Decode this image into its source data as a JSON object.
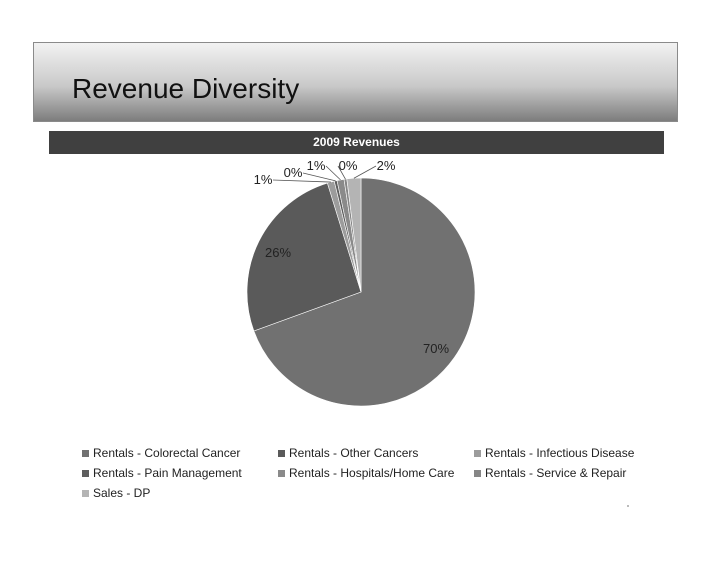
{
  "slide": {
    "title": "Revenue Diversity"
  },
  "chart_data": {
    "type": "pie",
    "title": "2009 Revenues",
    "categories": [
      "Rentals - Colorectal Cancer",
      "Rentals - Other Cancers",
      "Rentals - Infectious Disease",
      "Rentals - Pain Management",
      "Rentals - Hospitals/Home Care",
      "Rentals - Service & Repair",
      "Sales - DP"
    ],
    "values": [
      70,
      26,
      1,
      0,
      1,
      0,
      2
    ],
    "labels": [
      "70%",
      "26%",
      "1%",
      "0%",
      "1%",
      "0%",
      "2%"
    ],
    "colors": [
      "#717171",
      "#5a5a5a",
      "#9c9c9c",
      "#5e5e5e",
      "#8a8a8a",
      "#868686",
      "#b4b4b4"
    ],
    "legend_position": "bottom"
  }
}
